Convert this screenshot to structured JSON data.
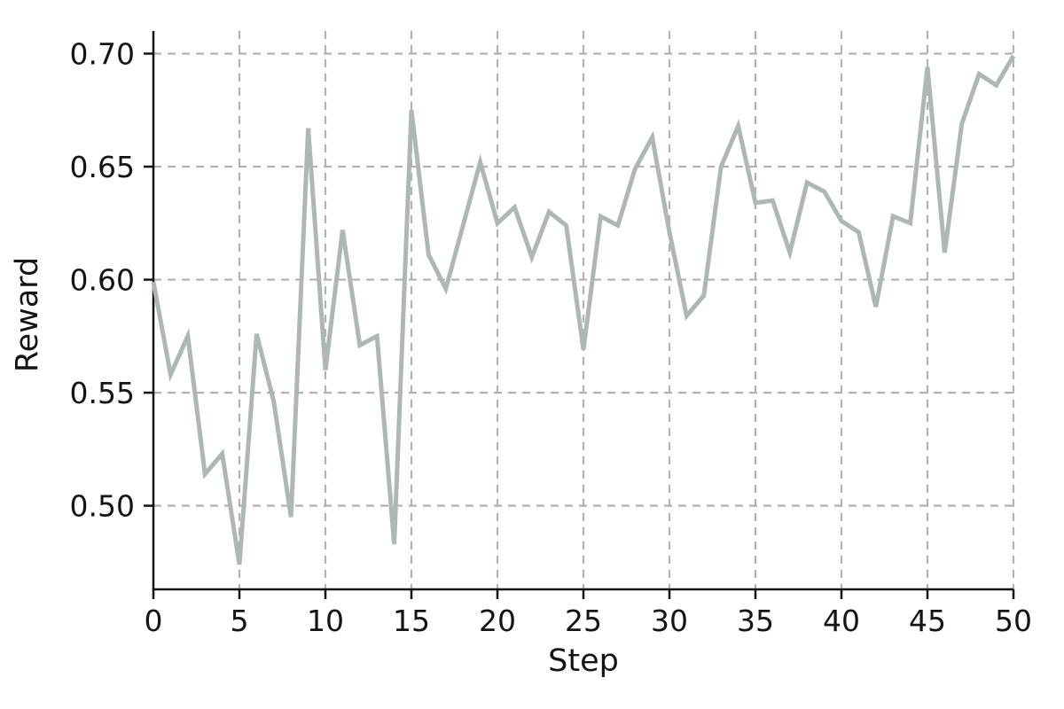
{
  "chart_data": {
    "type": "line",
    "title": "",
    "xlabel": "Step",
    "ylabel": "Reward",
    "x": [
      0,
      1,
      2,
      3,
      4,
      5,
      6,
      7,
      8,
      9,
      10,
      11,
      12,
      13,
      14,
      15,
      16,
      17,
      18,
      19,
      20,
      21,
      22,
      23,
      24,
      25,
      26,
      27,
      28,
      29,
      30,
      31,
      32,
      33,
      34,
      35,
      36,
      37,
      38,
      39,
      40,
      41,
      42,
      43,
      44,
      45,
      46,
      47,
      48,
      49,
      50
    ],
    "series": [
      {
        "name": "Reward",
        "values": [
          0.599,
          0.558,
          0.575,
          0.514,
          0.523,
          0.474,
          0.576,
          0.546,
          0.495,
          0.667,
          0.56,
          0.622,
          0.571,
          0.575,
          0.483,
          0.675,
          0.611,
          0.596,
          0.624,
          0.652,
          0.625,
          0.632,
          0.61,
          0.63,
          0.624,
          0.569,
          0.628,
          0.624,
          0.649,
          0.663,
          0.621,
          0.584,
          0.593,
          0.65,
          0.668,
          0.634,
          0.635,
          0.612,
          0.643,
          0.639,
          0.626,
          0.621,
          0.588,
          0.628,
          0.625,
          0.694,
          0.612,
          0.669,
          0.691,
          0.686,
          0.699
        ]
      }
    ],
    "xticks": [
      0,
      5,
      10,
      15,
      20,
      25,
      30,
      35,
      40,
      45,
      50
    ],
    "xtick_labels": [
      "0",
      "5",
      "10",
      "15",
      "20",
      "25",
      "30",
      "35",
      "40",
      "45",
      "50"
    ],
    "yticks": [
      0.5,
      0.55,
      0.6,
      0.65,
      0.7
    ],
    "ytick_labels": [
      "0.50",
      "0.55",
      "0.60",
      "0.65",
      "0.70"
    ],
    "xlim": [
      0,
      50
    ],
    "ylim": [
      0.463,
      0.71
    ],
    "grid": true,
    "grid_style": "dashed",
    "legend_position": "none",
    "colors": {
      "line": "#aeb8b2",
      "grid": "#b2b2b2",
      "spine": "#141414",
      "text": "#141414",
      "background": "#ffffff"
    }
  }
}
